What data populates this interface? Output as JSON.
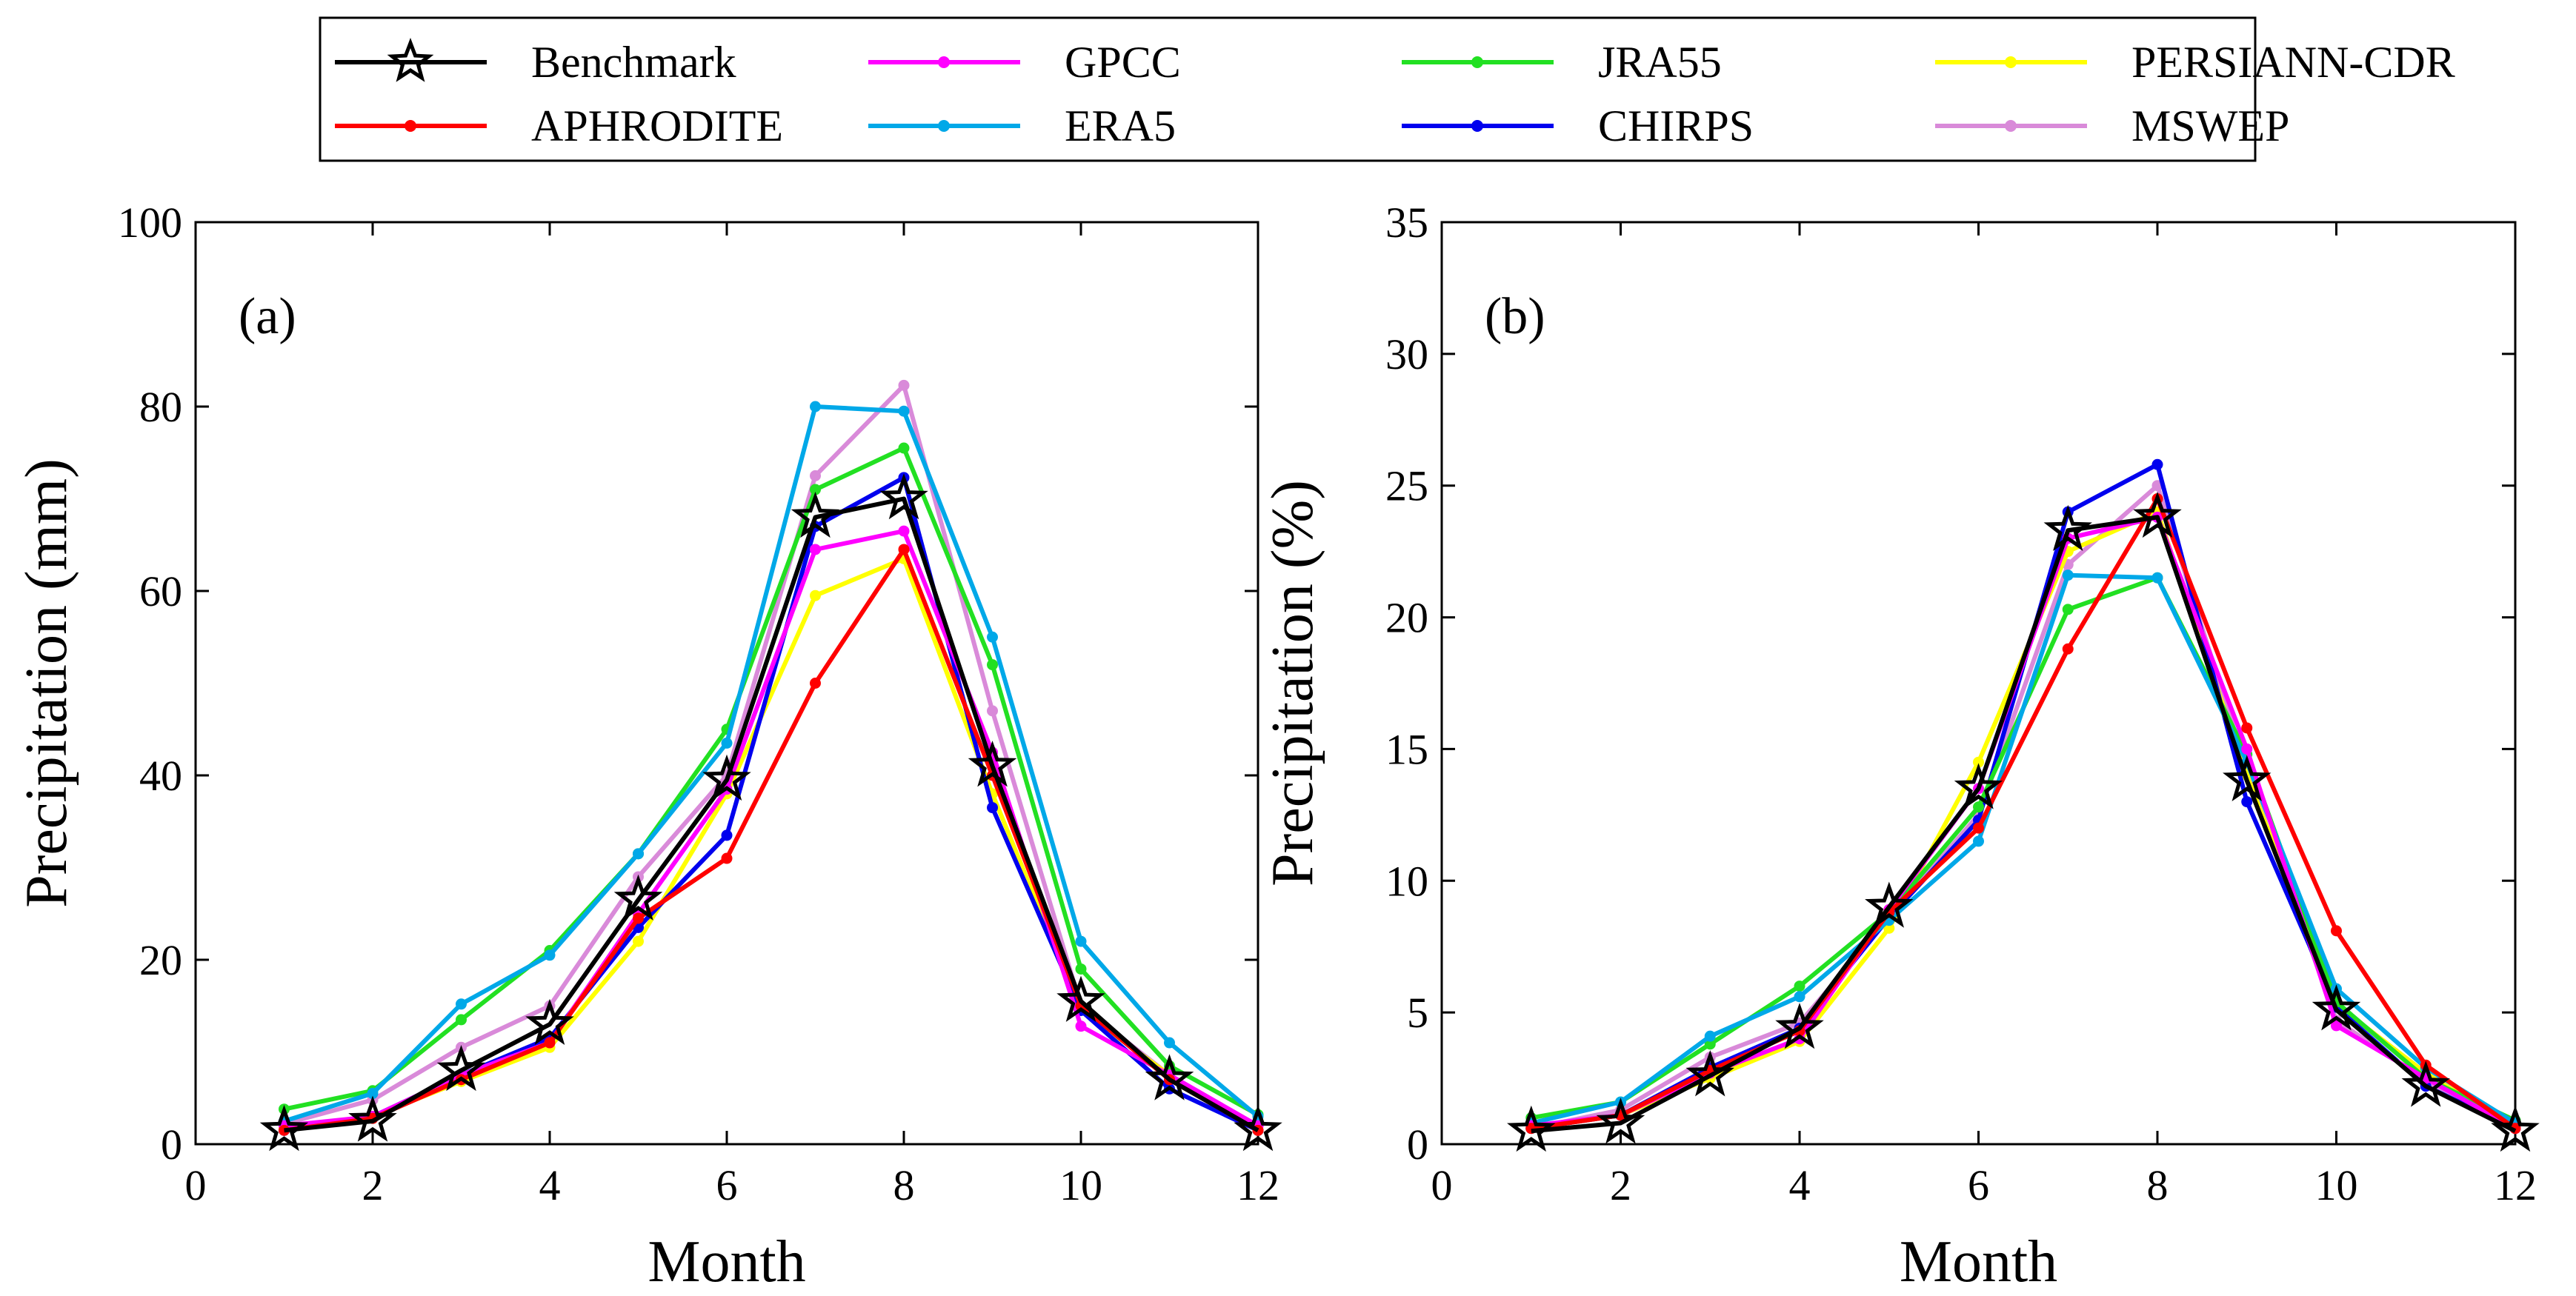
{
  "colors": {
    "Benchmark": "#000000",
    "APHRODITE": "#ff0000",
    "GPCC": "#ff00ff",
    "ERA5": "#00a8e8",
    "JRA55": "#22e022",
    "CHIRPS": "#0000ee",
    "PERSIANN-CDR": "#ffff00",
    "MSWEP": "#d98ad9"
  },
  "legend": {
    "rows": [
      [
        "Benchmark",
        "GPCC",
        "JRA55",
        "PERSIANN-CDR"
      ],
      [
        "APHRODITE",
        "ERA5",
        "CHIRPS",
        "MSWEP"
      ]
    ]
  },
  "chart_data": [
    {
      "type": "line",
      "panel_label": "(a)",
      "xlabel": "Month",
      "ylabel": "Precipitation (mm)",
      "xlim": [
        0,
        12
      ],
      "ylim": [
        0,
        100
      ],
      "xticks": [
        0,
        2,
        4,
        6,
        8,
        10,
        12
      ],
      "yticks": [
        0,
        20,
        40,
        60,
        80,
        100
      ],
      "x": [
        1,
        2,
        3,
        4,
        5,
        6,
        7,
        8,
        9,
        10,
        11,
        12
      ],
      "series": [
        {
          "name": "MSWEP",
          "values": [
            2.2,
            4.8,
            10.5,
            15.0,
            29.0,
            40.0,
            72.5,
            82.3,
            47.0,
            15.0,
            7.5,
            2.0
          ]
        },
        {
          "name": "PERSIANN-CDR",
          "values": [
            1.8,
            3.0,
            6.8,
            10.5,
            22.0,
            38.0,
            59.5,
            63.5,
            38.0,
            14.5,
            7.5,
            1.5
          ]
        },
        {
          "name": "CHIRPS",
          "values": [
            1.5,
            3.0,
            7.5,
            11.5,
            23.5,
            33.5,
            67.0,
            72.3,
            36.5,
            14.5,
            6.0,
            1.5
          ]
        },
        {
          "name": "JRA55",
          "values": [
            3.8,
            5.8,
            13.5,
            21.0,
            31.5,
            45.0,
            71.0,
            75.5,
            52.0,
            19.0,
            8.5,
            3.2
          ]
        },
        {
          "name": "ERA5",
          "values": [
            2.5,
            5.5,
            15.2,
            20.5,
            31.5,
            43.5,
            80.0,
            79.5,
            55.0,
            22.0,
            11.0,
            3.0
          ]
        },
        {
          "name": "GPCC",
          "values": [
            2.0,
            3.0,
            7.5,
            11.0,
            25.0,
            38.5,
            64.5,
            66.5,
            42.5,
            12.8,
            7.5,
            2.0
          ]
        },
        {
          "name": "APHRODITE",
          "values": [
            1.5,
            2.8,
            7.0,
            11.0,
            24.5,
            31.0,
            50.0,
            64.5,
            40.0,
            15.0,
            7.0,
            1.5
          ]
        },
        {
          "name": "Benchmark",
          "values": [
            1.5,
            2.5,
            8.0,
            13.0,
            26.5,
            39.5,
            68.0,
            70.0,
            41.0,
            15.5,
            7.0,
            1.5
          ]
        }
      ]
    },
    {
      "type": "line",
      "panel_label": "(b)",
      "xlabel": "Month",
      "ylabel": "Precipitation (%)",
      "xlim": [
        0,
        12
      ],
      "ylim": [
        0,
        35
      ],
      "xticks": [
        0,
        2,
        4,
        6,
        8,
        10,
        12
      ],
      "yticks": [
        0,
        5,
        10,
        15,
        20,
        25,
        30,
        35
      ],
      "x": [
        1,
        2,
        3,
        4,
        5,
        6,
        7,
        8,
        9,
        10,
        11,
        12
      ],
      "series": [
        {
          "name": "MSWEP",
          "values": [
            0.6,
            1.3,
            3.3,
            4.6,
            8.6,
            12.5,
            22.0,
            25.0,
            14.2,
            4.7,
            2.4,
            0.6
          ]
        },
        {
          "name": "PERSIANN-CDR",
          "values": [
            0.6,
            1.1,
            2.5,
            3.9,
            8.2,
            14.5,
            22.5,
            24.0,
            14.0,
            5.3,
            2.7,
            0.6
          ]
        },
        {
          "name": "CHIRPS",
          "values": [
            0.6,
            1.1,
            2.9,
            4.4,
            8.6,
            12.3,
            24.0,
            25.8,
            13.0,
            5.2,
            2.2,
            0.6
          ]
        },
        {
          "name": "JRA55",
          "values": [
            1.0,
            1.6,
            3.8,
            6.0,
            8.8,
            12.8,
            20.3,
            21.5,
            14.8,
            5.4,
            2.5,
            0.9
          ]
        },
        {
          "name": "ERA5",
          "values": [
            0.8,
            1.6,
            4.1,
            5.6,
            8.5,
            11.5,
            21.6,
            21.5,
            14.5,
            5.9,
            2.9,
            0.8
          ]
        },
        {
          "name": "GPCC",
          "values": [
            0.7,
            1.1,
            2.7,
            4.0,
            8.9,
            13.5,
            23.0,
            23.8,
            15.0,
            4.5,
            2.5,
            0.6
          ]
        },
        {
          "name": "APHRODITE",
          "values": [
            0.6,
            1.1,
            2.8,
            4.3,
            8.8,
            12.0,
            18.8,
            24.5,
            15.8,
            8.1,
            3.0,
            0.6
          ]
        },
        {
          "name": "Benchmark",
          "values": [
            0.5,
            0.8,
            2.6,
            4.4,
            9.0,
            13.5,
            23.3,
            23.8,
            13.8,
            5.1,
            2.2,
            0.5
          ]
        }
      ]
    }
  ]
}
